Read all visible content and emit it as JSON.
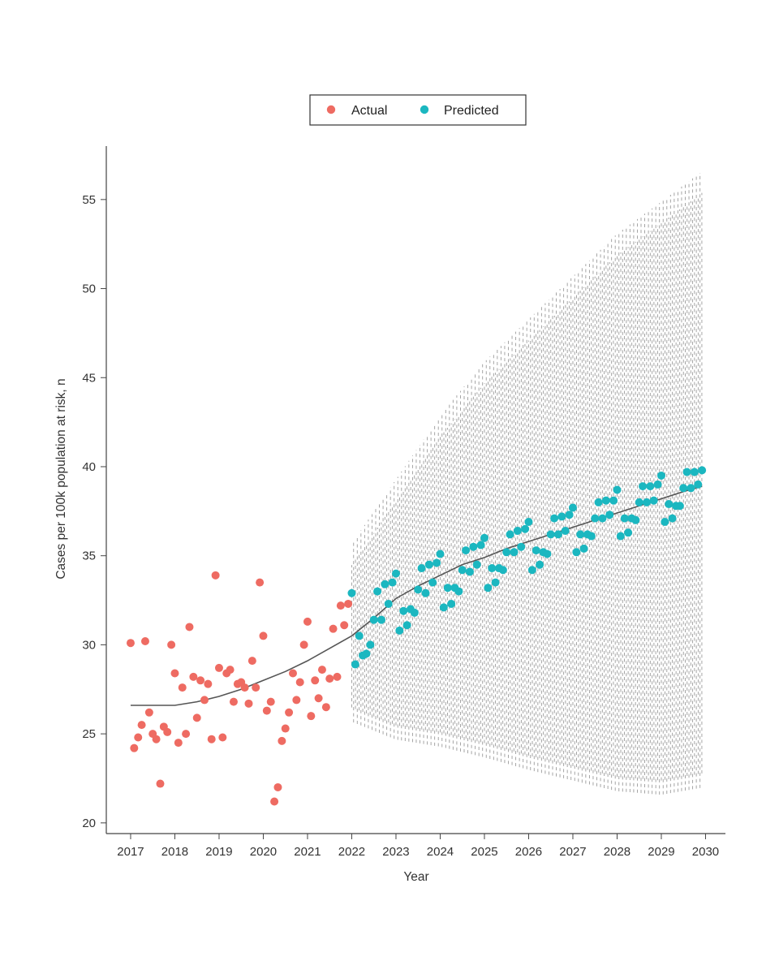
{
  "chart_data": {
    "type": "scatter",
    "title": "",
    "xlabel": "Year",
    "ylabel": "Cases per 100k population at risk, n",
    "xlim": [
      2016.45,
      2030.45
    ],
    "ylim": [
      19.4,
      58.0
    ],
    "xticks": [
      "2017",
      "2018",
      "2019",
      "2020",
      "2021",
      "2022",
      "2023",
      "2024",
      "2025",
      "2026",
      "2027",
      "2028",
      "2029",
      "2030"
    ],
    "yticks": [
      "20",
      "25",
      "30",
      "35",
      "40",
      "45",
      "50",
      "55"
    ],
    "legend": {
      "position": "top-center",
      "entries": [
        "Actual",
        "Predicted"
      ]
    },
    "colors": {
      "actual": "#ee6b62",
      "predicted": "#1bb7c0",
      "trend": "#555555",
      "interval": "#8a8a8a",
      "axis": "#444444"
    },
    "series": [
      {
        "name": "Actual",
        "points": [
          [
            2017.0,
            30.1
          ],
          [
            2017.08,
            24.2
          ],
          [
            2017.17,
            24.8
          ],
          [
            2017.25,
            25.5
          ],
          [
            2017.33,
            30.2
          ],
          [
            2017.42,
            26.2
          ],
          [
            2017.5,
            25.0
          ],
          [
            2017.58,
            24.7
          ],
          [
            2017.67,
            22.2
          ],
          [
            2017.75,
            25.4
          ],
          [
            2017.83,
            25.1
          ],
          [
            2017.92,
            30.0
          ],
          [
            2018.0,
            28.4
          ],
          [
            2018.08,
            24.5
          ],
          [
            2018.17,
            27.6
          ],
          [
            2018.25,
            25.0
          ],
          [
            2018.33,
            31.0
          ],
          [
            2018.42,
            28.2
          ],
          [
            2018.5,
            25.9
          ],
          [
            2018.58,
            28.0
          ],
          [
            2018.67,
            26.9
          ],
          [
            2018.75,
            27.8
          ],
          [
            2018.83,
            24.7
          ],
          [
            2018.92,
            33.9
          ],
          [
            2019.0,
            28.7
          ],
          [
            2019.08,
            24.8
          ],
          [
            2019.17,
            28.4
          ],
          [
            2019.25,
            28.6
          ],
          [
            2019.33,
            26.8
          ],
          [
            2019.42,
            27.8
          ],
          [
            2019.5,
            27.9
          ],
          [
            2019.58,
            27.6
          ],
          [
            2019.67,
            26.7
          ],
          [
            2019.75,
            29.1
          ],
          [
            2019.83,
            27.6
          ],
          [
            2019.92,
            33.5
          ],
          [
            2020.0,
            30.5
          ],
          [
            2020.08,
            26.3
          ],
          [
            2020.17,
            26.8
          ],
          [
            2020.25,
            21.2
          ],
          [
            2020.33,
            22.0
          ],
          [
            2020.42,
            24.6
          ],
          [
            2020.5,
            25.3
          ],
          [
            2020.58,
            26.2
          ],
          [
            2020.67,
            28.4
          ],
          [
            2020.75,
            26.9
          ],
          [
            2020.83,
            27.9
          ],
          [
            2020.92,
            30.0
          ],
          [
            2021.0,
            31.3
          ],
          [
            2021.08,
            26.0
          ],
          [
            2021.17,
            28.0
          ],
          [
            2021.25,
            27.0
          ],
          [
            2021.33,
            28.6
          ],
          [
            2021.42,
            26.5
          ],
          [
            2021.5,
            28.1
          ],
          [
            2021.58,
            30.9
          ],
          [
            2021.67,
            28.2
          ],
          [
            2021.75,
            32.2
          ],
          [
            2021.83,
            31.1
          ],
          [
            2021.92,
            32.3
          ]
        ]
      },
      {
        "name": "Predicted",
        "points": [
          [
            2022.0,
            32.9
          ],
          [
            2022.08,
            28.9
          ],
          [
            2022.17,
            30.5
          ],
          [
            2022.25,
            29.4
          ],
          [
            2022.33,
            29.5
          ],
          [
            2022.42,
            30.0
          ],
          [
            2022.5,
            31.4
          ],
          [
            2022.58,
            33.0
          ],
          [
            2022.67,
            31.4
          ],
          [
            2022.75,
            33.4
          ],
          [
            2022.83,
            32.3
          ],
          [
            2022.92,
            33.5
          ],
          [
            2023.0,
            34.0
          ],
          [
            2023.08,
            30.8
          ],
          [
            2023.17,
            31.9
          ],
          [
            2023.25,
            31.1
          ],
          [
            2023.33,
            32.0
          ],
          [
            2023.42,
            31.8
          ],
          [
            2023.5,
            33.1
          ],
          [
            2023.58,
            34.3
          ],
          [
            2023.67,
            32.9
          ],
          [
            2023.75,
            34.5
          ],
          [
            2023.83,
            33.5
          ],
          [
            2023.92,
            34.6
          ],
          [
            2024.0,
            35.1
          ],
          [
            2024.08,
            32.1
          ],
          [
            2024.17,
            33.2
          ],
          [
            2024.25,
            32.3
          ],
          [
            2024.33,
            33.2
          ],
          [
            2024.42,
            33.0
          ],
          [
            2024.5,
            34.2
          ],
          [
            2024.58,
            35.3
          ],
          [
            2024.67,
            34.1
          ],
          [
            2024.75,
            35.5
          ],
          [
            2024.83,
            34.5
          ],
          [
            2024.92,
            35.6
          ],
          [
            2025.0,
            36.0
          ],
          [
            2025.08,
            33.2
          ],
          [
            2025.17,
            34.3
          ],
          [
            2025.25,
            33.5
          ],
          [
            2025.33,
            34.3
          ],
          [
            2025.42,
            34.2
          ],
          [
            2025.5,
            35.2
          ],
          [
            2025.58,
            36.2
          ],
          [
            2025.67,
            35.2
          ],
          [
            2025.75,
            36.4
          ],
          [
            2025.83,
            35.5
          ],
          [
            2025.92,
            36.5
          ],
          [
            2026.0,
            36.9
          ],
          [
            2026.08,
            34.2
          ],
          [
            2026.17,
            35.3
          ],
          [
            2026.25,
            34.5
          ],
          [
            2026.33,
            35.2
          ],
          [
            2026.42,
            35.1
          ],
          [
            2026.5,
            36.2
          ],
          [
            2026.58,
            37.1
          ],
          [
            2026.67,
            36.2
          ],
          [
            2026.75,
            37.2
          ],
          [
            2026.83,
            36.4
          ],
          [
            2026.92,
            37.3
          ],
          [
            2027.0,
            37.7
          ],
          [
            2027.08,
            35.2
          ],
          [
            2027.17,
            36.2
          ],
          [
            2027.25,
            35.4
          ],
          [
            2027.33,
            36.2
          ],
          [
            2027.42,
            36.1
          ],
          [
            2027.5,
            37.1
          ],
          [
            2027.58,
            38.0
          ],
          [
            2027.67,
            37.1
          ],
          [
            2027.75,
            38.1
          ],
          [
            2027.83,
            37.3
          ],
          [
            2027.92,
            38.1
          ],
          [
            2028.0,
            38.7
          ],
          [
            2028.08,
            36.1
          ],
          [
            2028.17,
            37.1
          ],
          [
            2028.25,
            36.3
          ],
          [
            2028.33,
            37.1
          ],
          [
            2028.42,
            37.0
          ],
          [
            2028.5,
            38.0
          ],
          [
            2028.58,
            38.9
          ],
          [
            2028.67,
            38.0
          ],
          [
            2028.75,
            38.9
          ],
          [
            2028.83,
            38.1
          ],
          [
            2028.92,
            39.0
          ],
          [
            2029.0,
            39.5
          ],
          [
            2029.08,
            36.9
          ],
          [
            2029.17,
            37.9
          ],
          [
            2029.25,
            37.1
          ],
          [
            2029.33,
            37.8
          ],
          [
            2029.42,
            37.8
          ],
          [
            2029.5,
            38.8
          ],
          [
            2029.58,
            39.7
          ],
          [
            2029.67,
            38.8
          ],
          [
            2029.75,
            39.7
          ],
          [
            2029.83,
            39.0
          ],
          [
            2029.92,
            39.8
          ]
        ]
      }
    ],
    "trend_line": {
      "name": "Fitted trend",
      "points": [
        [
          2017.0,
          26.6
        ],
        [
          2018.0,
          26.6
        ],
        [
          2018.5,
          26.8
        ],
        [
          2019.0,
          27.1
        ],
        [
          2019.5,
          27.5
        ],
        [
          2020.0,
          28.0
        ],
        [
          2020.5,
          28.5
        ],
        [
          2021.0,
          29.1
        ],
        [
          2021.5,
          29.8
        ],
        [
          2022.0,
          30.5
        ],
        [
          2022.5,
          31.5
        ],
        [
          2023.0,
          32.6
        ],
        [
          2023.5,
          33.3
        ],
        [
          2024.0,
          33.9
        ],
        [
          2024.5,
          34.5
        ],
        [
          2025.0,
          34.9
        ],
        [
          2025.5,
          35.4
        ],
        [
          2026.0,
          35.8
        ],
        [
          2026.5,
          36.2
        ],
        [
          2027.0,
          36.6
        ],
        [
          2027.5,
          37.0
        ],
        [
          2028.0,
          37.4
        ],
        [
          2028.5,
          37.8
        ],
        [
          2029.0,
          38.2
        ],
        [
          2029.5,
          38.6
        ],
        [
          2029.92,
          38.9
        ]
      ]
    },
    "prediction_interval": {
      "name": "Prediction interval",
      "x_start": 2022.0,
      "x_end": 2029.92,
      "lower": [
        [
          2022.0,
          26.0
        ],
        [
          2023.0,
          25.0
        ],
        [
          2024.0,
          24.6
        ],
        [
          2025.0,
          24.0
        ],
        [
          2026.0,
          23.3
        ],
        [
          2027.0,
          22.7
        ],
        [
          2028.0,
          22.1
        ],
        [
          2029.0,
          21.9
        ],
        [
          2029.92,
          22.3
        ]
      ],
      "upper": [
        [
          2022.0,
          35.2
        ],
        [
          2023.0,
          38.8
        ],
        [
          2024.0,
          42.4
        ],
        [
          2025.0,
          45.4
        ],
        [
          2026.0,
          47.8
        ],
        [
          2027.0,
          50.2
        ],
        [
          2028.0,
          52.6
        ],
        [
          2029.0,
          54.4
        ],
        [
          2029.92,
          56.1
        ]
      ]
    }
  }
}
